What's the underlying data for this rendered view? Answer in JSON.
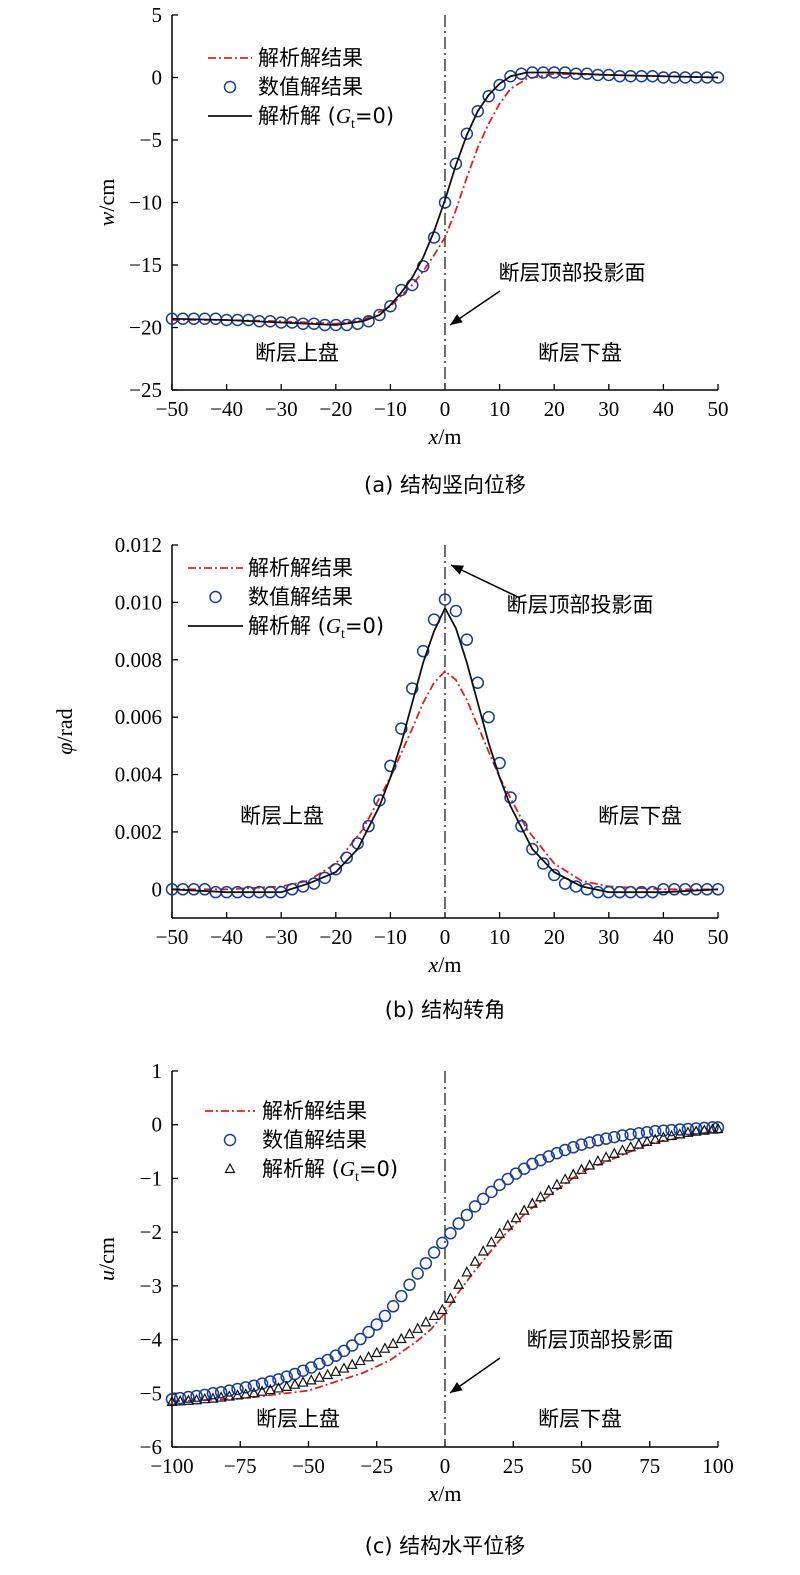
{
  "colors": {
    "analytic": "#e0201b",
    "numeric": "#1a3d9a",
    "gt0": "#111111",
    "axis": "#000000"
  },
  "chart_data": [
    {
      "type": "line",
      "caption": "(a) 结构竖向位移",
      "xlabel_var": "x",
      "xlabel_unit": "/m",
      "ylabel_var": "w",
      "ylabel_unit": "/cm",
      "xlim": [
        -50,
        50
      ],
      "ylim": [
        -25,
        5
      ],
      "xticks": [
        -50,
        -40,
        -30,
        -20,
        -10,
        0,
        10,
        20,
        30,
        40,
        50
      ],
      "yticks": [
        -25,
        -20,
        -15,
        -10,
        -5,
        0,
        5
      ],
      "tick_labels_x": [
        "−50",
        "−40",
        "−30",
        "−20",
        "−10",
        "0",
        "10",
        "20",
        "30",
        "40",
        "50"
      ],
      "tick_labels_y": [
        "−25",
        "−20",
        "−15",
        "−10",
        "−5",
        "0",
        "5"
      ],
      "legend": [
        "解析解结果",
        "数值解结果",
        "解析解 (",
        "G",
        "t",
        "=0)"
      ],
      "annotation": "断层顶部投影面",
      "region_left": "断层上盘",
      "region_right": "断层下盘",
      "fault_x": 0,
      "series": [
        {
          "name": "解析解结果",
          "style": "dashdot",
          "x": [
            -50,
            -40,
            -30,
            -20,
            -15,
            -10,
            -6,
            -4,
            -2,
            0,
            2,
            4,
            6,
            8,
            10,
            12,
            15,
            20,
            30,
            40,
            50
          ],
          "y": [
            -19.4,
            -19.4,
            -19.5,
            -19.7,
            -19.4,
            -18.3,
            -16.6,
            -15.5,
            -14.2,
            -12.8,
            -10.6,
            -8.0,
            -5.6,
            -3.7,
            -2.1,
            -0.9,
            -0.1,
            0.3,
            0.2,
            0.1,
            0.0
          ]
        },
        {
          "name": "数值解结果",
          "style": "circle",
          "x": [
            -50,
            -48,
            -46,
            -44,
            -42,
            -40,
            -38,
            -36,
            -34,
            -32,
            -30,
            -28,
            -26,
            -24,
            -22,
            -20,
            -18,
            -16,
            -14,
            -12,
            -10,
            -8,
            -6,
            -4,
            -2,
            0,
            2,
            4,
            6,
            8,
            10,
            12,
            14,
            16,
            18,
            20,
            22,
            24,
            26,
            28,
            30,
            32,
            34,
            36,
            38,
            40,
            42,
            44,
            46,
            48,
            50
          ],
          "y": [
            -19.3,
            -19.3,
            -19.3,
            -19.3,
            -19.3,
            -19.4,
            -19.4,
            -19.4,
            -19.5,
            -19.5,
            -19.6,
            -19.6,
            -19.7,
            -19.7,
            -19.8,
            -19.8,
            -19.8,
            -19.7,
            -19.5,
            -19.0,
            -18.3,
            -17.0,
            -16.6,
            -15.1,
            -12.8,
            -10.0,
            -6.9,
            -4.5,
            -2.7,
            -1.5,
            -0.6,
            0.1,
            0.3,
            0.4,
            0.4,
            0.4,
            0.4,
            0.3,
            0.3,
            0.2,
            0.2,
            0.1,
            0.1,
            0.1,
            0.1,
            0.0,
            0.0,
            0.0,
            0.0,
            0.0,
            0.0
          ]
        },
        {
          "name": "解析解 (Gt=0)",
          "style": "solid",
          "x": [
            -50,
            -40,
            -30,
            -20,
            -15,
            -12,
            -10,
            -8,
            -6,
            -4,
            -2,
            0,
            2,
            4,
            6,
            8,
            10,
            12,
            15,
            20,
            30,
            40,
            50
          ],
          "y": [
            -19.3,
            -19.4,
            -19.6,
            -19.8,
            -19.5,
            -19.0,
            -18.2,
            -17.2,
            -16.0,
            -14.4,
            -12.3,
            -9.8,
            -7.0,
            -4.6,
            -2.7,
            -1.4,
            -0.5,
            0.1,
            0.4,
            0.4,
            0.2,
            0.1,
            0.0
          ]
        }
      ]
    },
    {
      "type": "line",
      "caption": "(b) 结构转角",
      "xlabel_var": "x",
      "xlabel_unit": "/m",
      "ylabel_var": "φ",
      "ylabel_unit": "/rad",
      "xlim": [
        -50,
        50
      ],
      "ylim": [
        -0.001,
        0.012
      ],
      "xticks": [
        -50,
        -40,
        -30,
        -20,
        -10,
        0,
        10,
        20,
        30,
        40,
        50
      ],
      "yticks": [
        0,
        0.002,
        0.004,
        0.006,
        0.008,
        0.01,
        0.012
      ],
      "tick_labels_x": [
        "−50",
        "−40",
        "−30",
        "−20",
        "−10",
        "0",
        "10",
        "20",
        "30",
        "40",
        "50"
      ],
      "tick_labels_y": [
        "0",
        "0.002",
        "0.004",
        "0.006",
        "0.008",
        "0.010",
        "0.012"
      ],
      "legend": [
        "解析解结果",
        "数值解结果",
        "解析解 (",
        "G",
        "t",
        "=0)"
      ],
      "annotation": "断层顶部投影面",
      "region_left": "断层上盘",
      "region_right": "断层下盘",
      "fault_x": 0,
      "series": [
        {
          "name": "解析解结果",
          "style": "dashdot",
          "x": [
            -50,
            -40,
            -30,
            -25,
            -20,
            -15,
            -10,
            -6,
            -4,
            -2,
            0,
            2,
            4,
            6,
            10,
            15,
            20,
            25,
            30,
            40,
            50
          ],
          "y": [
            0.0,
            0.0,
            0.0001,
            0.0003,
            0.0009,
            0.0021,
            0.0039,
            0.0056,
            0.0065,
            0.0072,
            0.0076,
            0.0073,
            0.0066,
            0.0057,
            0.0039,
            0.0021,
            0.0009,
            0.0003,
            0.0001,
            0.0,
            0.0
          ]
        },
        {
          "name": "数值解结果",
          "style": "circle",
          "x": [
            -50,
            -48,
            -46,
            -44,
            -42,
            -40,
            -38,
            -36,
            -34,
            -32,
            -30,
            -28,
            -26,
            -24,
            -22,
            -20,
            -18,
            -16,
            -14,
            -12,
            -10,
            -8,
            -6,
            -4,
            -2,
            0,
            2,
            4,
            6,
            8,
            10,
            12,
            14,
            16,
            18,
            20,
            22,
            24,
            26,
            28,
            30,
            32,
            34,
            36,
            38,
            40,
            42,
            44,
            46,
            48,
            50
          ],
          "y": [
            0.0,
            0.0,
            0.0,
            0.0,
            -0.0001,
            -0.0001,
            -0.0001,
            -0.0001,
            -0.0001,
            -0.0001,
            -0.0001,
            0.0,
            0.0001,
            0.0002,
            0.0004,
            0.0007,
            0.0011,
            0.0016,
            0.0022,
            0.0031,
            0.0043,
            0.0056,
            0.007,
            0.0083,
            0.0094,
            0.0101,
            0.0097,
            0.0087,
            0.0072,
            0.006,
            0.0044,
            0.0032,
            0.0022,
            0.0014,
            0.0009,
            0.0005,
            0.0002,
            0.0001,
            0.0,
            -0.0001,
            -0.0001,
            -0.0001,
            -0.0001,
            -0.0001,
            -0.0001,
            0.0,
            0.0,
            0.0,
            0.0,
            0.0,
            0.0
          ]
        },
        {
          "name": "解析解 (Gt=0)",
          "style": "solid",
          "x": [
            -50,
            -40,
            -35,
            -30,
            -25,
            -20,
            -16,
            -12,
            -10,
            -8,
            -6,
            -4,
            -2,
            0,
            2,
            4,
            6,
            8,
            10,
            12,
            16,
            20,
            25,
            30,
            35,
            40,
            50
          ],
          "y": [
            0.0,
            -0.0001,
            -0.0001,
            -0.0001,
            0.0002,
            0.0006,
            0.0014,
            0.0029,
            0.0039,
            0.0051,
            0.0065,
            0.0079,
            0.009,
            0.0098,
            0.0091,
            0.0079,
            0.0065,
            0.0051,
            0.0039,
            0.0029,
            0.0014,
            0.0006,
            0.0001,
            -0.0001,
            -0.0001,
            -0.0001,
            0.0
          ]
        }
      ]
    },
    {
      "type": "scatter",
      "caption": "(c) 结构水平位移",
      "xlabel_var": "x",
      "xlabel_unit": "/m",
      "ylabel_var": "u",
      "ylabel_unit": "/cm",
      "xlim": [
        -100,
        100
      ],
      "ylim": [
        -6,
        1
      ],
      "xticks": [
        -100,
        -75,
        -50,
        -25,
        0,
        25,
        50,
        75,
        100
      ],
      "yticks": [
        -6,
        -5,
        -4,
        -3,
        -2,
        -1,
        0,
        1
      ],
      "tick_labels_x": [
        "−100",
        "−75",
        "−50",
        "−25",
        "0",
        "25",
        "50",
        "75",
        "100"
      ],
      "tick_labels_y": [
        "−6",
        "−5",
        "−4",
        "−3",
        "−2",
        "−1",
        "0",
        "1"
      ],
      "legend": [
        "解析解结果",
        "数值解结果",
        "解析解 (",
        "G",
        "t",
        "=0)"
      ],
      "annotation": "断层顶部投影面",
      "region_left": "断层上盘",
      "region_right": "断层下盘",
      "fault_x": 0,
      "series": [
        {
          "name": "解析解结果",
          "style": "dashdot",
          "x": [
            -100,
            -75,
            -50,
            -30,
            -20,
            -10,
            -5,
            0,
            5,
            10,
            20,
            30,
            50,
            75,
            100
          ],
          "y": [
            -5.15,
            -5.1,
            -4.95,
            -4.62,
            -4.38,
            -4.02,
            -3.8,
            -3.5,
            -3.12,
            -2.78,
            -2.15,
            -1.62,
            -0.88,
            -0.35,
            -0.1
          ]
        },
        {
          "name": "数值解结果",
          "style": "circle",
          "x": [
            -100,
            -97,
            -94,
            -91,
            -88,
            -85,
            -82,
            -79,
            -76,
            -73,
            -70,
            -67,
            -64,
            -61,
            -58,
            -55,
            -52,
            -49,
            -46,
            -43,
            -40,
            -37,
            -34,
            -31,
            -28,
            -25,
            -22,
            -19,
            -16,
            -13,
            -10,
            -7,
            -4,
            -1,
            2,
            5,
            8,
            11,
            14,
            17,
            20,
            23,
            26,
            29,
            32,
            35,
            38,
            41,
            44,
            47,
            50,
            53,
            56,
            59,
            62,
            65,
            68,
            71,
            74,
            77,
            80,
            83,
            86,
            89,
            92,
            95,
            98,
            100
          ],
          "y": [
            -5.11,
            -5.09,
            -5.07,
            -5.05,
            -5.03,
            -5.0,
            -4.98,
            -4.95,
            -4.92,
            -4.89,
            -4.86,
            -4.82,
            -4.78,
            -4.74,
            -4.69,
            -4.64,
            -4.58,
            -4.52,
            -4.45,
            -4.38,
            -4.3,
            -4.21,
            -4.11,
            -3.99,
            -3.86,
            -3.72,
            -3.56,
            -3.38,
            -3.19,
            -2.98,
            -2.77,
            -2.58,
            -2.38,
            -2.2,
            -2.02,
            -1.84,
            -1.68,
            -1.52,
            -1.38,
            -1.25,
            -1.12,
            -1.01,
            -0.91,
            -0.82,
            -0.73,
            -0.66,
            -0.59,
            -0.53,
            -0.47,
            -0.42,
            -0.37,
            -0.33,
            -0.29,
            -0.26,
            -0.23,
            -0.2,
            -0.18,
            -0.16,
            -0.14,
            -0.12,
            -0.11,
            -0.1,
            -0.09,
            -0.08,
            -0.07,
            -0.06,
            -0.05,
            -0.05
          ]
        },
        {
          "name": "解析解 (Gt=0)",
          "style": "triangle",
          "x": [
            -100,
            -97,
            -94,
            -91,
            -88,
            -85,
            -82,
            -79,
            -76,
            -73,
            -70,
            -67,
            -64,
            -61,
            -58,
            -55,
            -52,
            -49,
            -46,
            -43,
            -40,
            -37,
            -34,
            -31,
            -28,
            -25,
            -22,
            -19,
            -16,
            -13,
            -10,
            -7,
            -4,
            -1,
            2,
            5,
            8,
            11,
            14,
            17,
            20,
            23,
            26,
            29,
            32,
            35,
            38,
            41,
            44,
            47,
            50,
            53,
            56,
            59,
            62,
            65,
            68,
            71,
            74,
            77,
            80,
            83,
            86,
            89,
            92,
            95,
            98,
            100
          ],
          "y": [
            -5.16,
            -5.15,
            -5.14,
            -5.13,
            -5.11,
            -5.1,
            -5.08,
            -5.06,
            -5.04,
            -5.02,
            -5.0,
            -4.97,
            -4.94,
            -4.91,
            -4.88,
            -4.84,
            -4.8,
            -4.76,
            -4.71,
            -4.66,
            -4.6,
            -4.54,
            -4.47,
            -4.4,
            -4.33,
            -4.25,
            -4.17,
            -4.08,
            -3.99,
            -3.9,
            -3.8,
            -3.68,
            -3.56,
            -3.45,
            -3.24,
            -2.98,
            -2.75,
            -2.55,
            -2.36,
            -2.19,
            -2.03,
            -1.88,
            -1.74,
            -1.6,
            -1.47,
            -1.35,
            -1.23,
            -1.12,
            -1.02,
            -0.93,
            -0.84,
            -0.76,
            -0.68,
            -0.61,
            -0.54,
            -0.48,
            -0.42,
            -0.37,
            -0.32,
            -0.28,
            -0.24,
            -0.21,
            -0.18,
            -0.15,
            -0.13,
            -0.11,
            -0.09,
            -0.08
          ]
        }
      ]
    }
  ]
}
